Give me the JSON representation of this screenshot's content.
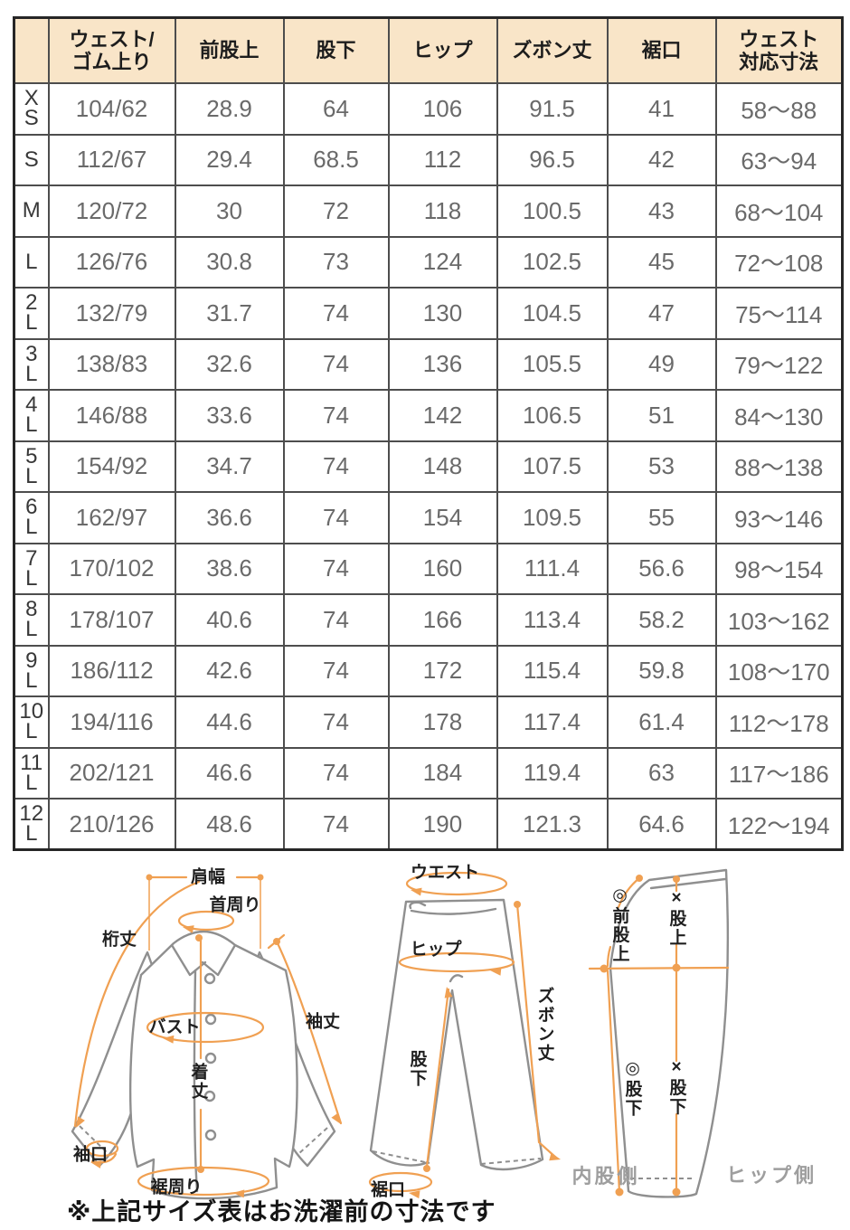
{
  "note": "※上記サイズ表はお洗濯前の寸法です",
  "colors": {
    "header_bg": "#f9e5c8",
    "table_border": "#4d4d4d",
    "value_text": "#6a6a6a",
    "accent_orange": "#f0a052",
    "garment_gray": "#8f8f8f",
    "side_label_gray": "#9e9e9e"
  },
  "table": {
    "headers": [
      "",
      "ウェスト/\nゴム上り",
      "前股上",
      "股下",
      "ヒップ",
      "ズボン丈",
      "裾口",
      "ウェスト\n対応寸法"
    ],
    "rows": [
      {
        "size": "X\nS",
        "values": [
          "104/62",
          "28.9",
          "64",
          "106",
          "91.5",
          "41",
          "58～88"
        ]
      },
      {
        "size": "S",
        "values": [
          "112/67",
          "29.4",
          "68.5",
          "112",
          "96.5",
          "42",
          "63～94"
        ]
      },
      {
        "size": "M",
        "values": [
          "120/72",
          "30",
          "72",
          "118",
          "100.5",
          "43",
          "68～104"
        ]
      },
      {
        "size": "L",
        "values": [
          "126/76",
          "30.8",
          "73",
          "124",
          "102.5",
          "45",
          "72～108"
        ]
      },
      {
        "size": "2\nL",
        "values": [
          "132/79",
          "31.7",
          "74",
          "130",
          "104.5",
          "47",
          "75～114"
        ]
      },
      {
        "size": "3\nL",
        "values": [
          "138/83",
          "32.6",
          "74",
          "136",
          "105.5",
          "49",
          "79～122"
        ]
      },
      {
        "size": "4\nL",
        "values": [
          "146/88",
          "33.6",
          "74",
          "142",
          "106.5",
          "51",
          "84～130"
        ]
      },
      {
        "size": "5\nL",
        "values": [
          "154/92",
          "34.7",
          "74",
          "148",
          "107.5",
          "53",
          "88～138"
        ]
      },
      {
        "size": "6\nL",
        "values": [
          "162/97",
          "36.6",
          "74",
          "154",
          "109.5",
          "55",
          "93～146"
        ]
      },
      {
        "size": "7\nL",
        "values": [
          "170/102",
          "38.6",
          "74",
          "160",
          "111.4",
          "56.6",
          "98～154"
        ]
      },
      {
        "size": "8\nL",
        "values": [
          "178/107",
          "40.6",
          "74",
          "166",
          "113.4",
          "58.2",
          "103～162"
        ]
      },
      {
        "size": "9\nL",
        "values": [
          "186/112",
          "42.6",
          "74",
          "172",
          "115.4",
          "59.8",
          "108～170"
        ]
      },
      {
        "size": "10\nL",
        "values": [
          "194/116",
          "44.6",
          "74",
          "178",
          "117.4",
          "61.4",
          "112～178"
        ]
      },
      {
        "size": "11\nL",
        "values": [
          "202/121",
          "46.6",
          "74",
          "184",
          "119.4",
          "63",
          "117～186"
        ]
      },
      {
        "size": "12\nL",
        "values": [
          "210/126",
          "48.6",
          "74",
          "190",
          "121.3",
          "64.6",
          "122～194"
        ]
      }
    ]
  },
  "diagram": {
    "shirt": {
      "shoulder": "肩幅",
      "neck": "首周り",
      "yuki": "桁丈",
      "bust": "バスト",
      "length": "着丈",
      "sleeve": "袖丈",
      "cuff": "袖口",
      "hem": "裾周り"
    },
    "pants_front": {
      "waist": "ウエスト",
      "hip": "ヒップ",
      "inseam": "股下",
      "outseam": "ズボン丈",
      "hem": "裾口"
    },
    "pants_side": {
      "front_rise": "◎前股上",
      "rise": "×股上",
      "inseam_a": "◎股下",
      "inseam_b": "×股下",
      "inner_side": "内股側",
      "hip_side": "ヒップ側"
    }
  }
}
